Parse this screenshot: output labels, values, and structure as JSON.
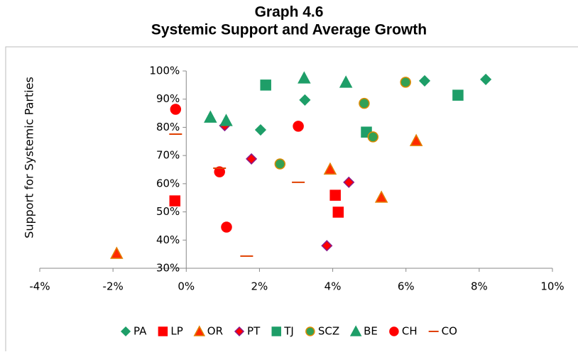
{
  "chart_data": {
    "type": "scatter",
    "title": "Graph 4.6",
    "subtitle": "Systemic Support and Average Growth",
    "y_label": "Support  for  Systemic  Parties",
    "xlim": [
      -4,
      10
    ],
    "xticks": [
      {
        "value": -4,
        "label": "-4%"
      },
      {
        "value": -2,
        "label": "-2%"
      },
      {
        "value": 0,
        "label": "0%"
      },
      {
        "value": 2,
        "label": "2%"
      },
      {
        "value": 4,
        "label": "4%"
      },
      {
        "value": 6,
        "label": "6%"
      },
      {
        "value": 8,
        "label": "8%"
      },
      {
        "value": 10,
        "label": "10%"
      }
    ],
    "ylim": [
      30,
      100
    ],
    "yticks": [
      {
        "value": 30,
        "label": "30%"
      },
      {
        "value": 40,
        "label": "40%"
      },
      {
        "value": 50,
        "label": "50%"
      },
      {
        "value": 60,
        "label": "60%"
      },
      {
        "value": 70,
        "label": "70%"
      },
      {
        "value": 80,
        "label": "80%"
      },
      {
        "value": 90,
        "label": "90%"
      },
      {
        "value": 100,
        "label": "100%"
      }
    ],
    "legend": "bottom",
    "series": [
      {
        "name": "PA",
        "marker": "diamond",
        "color": "#1e9e68",
        "edgecolor": "#1e9e68",
        "x": [
          3.24,
          2.03,
          6.51,
          8.18
        ],
        "values": [
          89.7,
          79.1,
          96.5,
          97.0
        ]
      },
      {
        "name": "LP",
        "marker": "square",
        "color": "#ff0000",
        "edgecolor": "#ff0000",
        "x": [
          -0.31,
          4.07,
          4.15
        ],
        "values": [
          53.9,
          55.9,
          49.9
        ]
      },
      {
        "name": "OR",
        "marker": "triangle",
        "color": "#ff2a00",
        "edgecolor": "#e08000",
        "x": [
          -1.9,
          3.93,
          5.33,
          6.28
        ],
        "values": [
          35.3,
          65.2,
          55.2,
          75.3
        ]
      },
      {
        "name": "PT",
        "marker": "diamond",
        "color": "#ff0000",
        "edgecolor": "#8a1a8a",
        "x": [
          1.05,
          1.78,
          4.44,
          3.84
        ],
        "values": [
          80.6,
          68.8,
          60.5,
          38.0
        ]
      },
      {
        "name": "TJ",
        "marker": "square",
        "color": "#1e9e68",
        "edgecolor": "#1e9e68",
        "x": [
          2.17,
          4.92,
          7.42
        ],
        "values": [
          95.0,
          78.3,
          91.4
        ]
      },
      {
        "name": "SCZ",
        "marker": "circle",
        "color": "#33a055",
        "edgecolor": "#e08a00",
        "x": [
          2.56,
          4.86,
          5.1,
          5.99
        ],
        "values": [
          67.0,
          88.5,
          76.6,
          96.0
        ]
      },
      {
        "name": "BE",
        "marker": "triangle",
        "color": "#1e9e68",
        "edgecolor": "#1e9e68",
        "x": [
          0.66,
          1.09,
          3.22,
          4.36
        ],
        "values": [
          83.6,
          82.4,
          97.5,
          96.0
        ]
      },
      {
        "name": "CH",
        "marker": "circle",
        "color": "#ff0000",
        "edgecolor": "#ff0000",
        "x": [
          -0.29,
          0.91,
          1.1,
          3.06
        ],
        "values": [
          86.4,
          64.2,
          44.6,
          80.4
        ]
      },
      {
        "name": "CO",
        "marker": "dash",
        "color": "#e04000",
        "edgecolor": "#e04000",
        "x": [
          -0.29,
          0.91,
          3.06,
          1.65
        ],
        "values": [
          77.6,
          65.5,
          60.5,
          34.3
        ]
      }
    ]
  }
}
